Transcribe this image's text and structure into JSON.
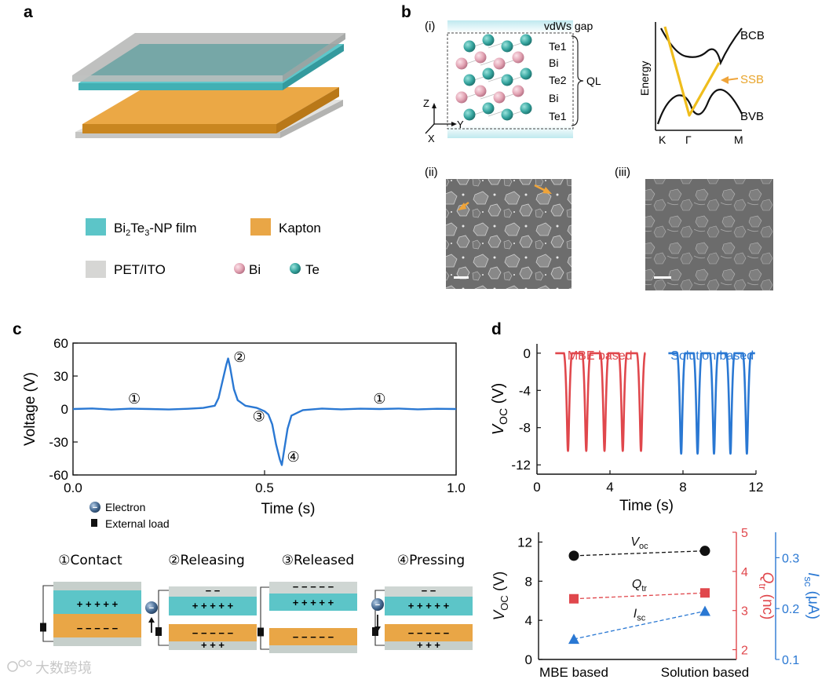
{
  "panels": {
    "a": "a",
    "b": "b",
    "c": "c",
    "d": "d"
  },
  "panel_a": {
    "legend": {
      "bi2te3_main": "Bi",
      "bi2te3_sub1": "2",
      "bi2te3_mid": "Te",
      "bi2te3_sub2": "3",
      "bi2te3_tail": "-NP film",
      "kapton": "Kapton",
      "pet_ito": "PET/ITO",
      "bi": "Bi",
      "te": "Te"
    },
    "colors": {
      "film": "#5cc5c8",
      "kapton": "#e9a646",
      "pet": "#d6d6d4"
    }
  },
  "panel_b": {
    "sub_i": "(i)",
    "sub_ii": "(ii)",
    "sub_iii": "(iii)",
    "vdws_gap": "vdWs gap",
    "layers": [
      "Te1",
      "Bi",
      "Te2",
      "Bi",
      "Te1"
    ],
    "ql": "QL",
    "axes": {
      "z": "Z",
      "y": "Y",
      "x": "X"
    },
    "band": {
      "energy_label": "Energy",
      "bcb": "BCB",
      "bvb": "BVB",
      "ssb": "SSB",
      "k_points": [
        "K",
        "Γ",
        "M"
      ]
    }
  },
  "panel_c": {
    "chart_data": {
      "type": "line",
      "title": "",
      "xlabel": "Time (s)",
      "ylabel": "Voltage (V)",
      "xlim": [
        0.0,
        1.0
      ],
      "ylim": [
        -60,
        60
      ],
      "xticks": [
        0.0,
        0.5,
        1.0
      ],
      "xtick_labels": [
        "0.0",
        "0.5",
        "1.0"
      ],
      "yticks": [
        60,
        30,
        0,
        -30,
        -60
      ],
      "ytick_labels": [
        "60",
        "30",
        "0",
        "-30",
        "-60"
      ],
      "series": [
        {
          "name": "Voltage",
          "x": [
            0.0,
            0.05,
            0.1,
            0.15,
            0.2,
            0.25,
            0.3,
            0.34,
            0.37,
            0.38,
            0.39,
            0.4,
            0.405,
            0.41,
            0.42,
            0.43,
            0.45,
            0.48,
            0.5,
            0.51,
            0.52,
            0.53,
            0.54,
            0.545,
            0.55,
            0.56,
            0.57,
            0.6,
            0.65,
            0.7,
            0.75,
            0.8,
            0.85,
            0.9,
            0.95,
            1.0
          ],
          "y": [
            0,
            0.5,
            -0.5,
            0.3,
            0,
            -0.4,
            0.2,
            1,
            3,
            10,
            25,
            40,
            46,
            38,
            18,
            8,
            3,
            1,
            -2,
            -5,
            -14,
            -32,
            -46,
            -51,
            -40,
            -18,
            -6,
            -1,
            0.4,
            -0.3,
            0.3,
            0,
            0.4,
            -0.3,
            0.2,
            0
          ]
        }
      ],
      "annotations": [
        {
          "text": "①",
          "x": 0.16,
          "y": 5
        },
        {
          "text": "②",
          "x": 0.435,
          "y": 43
        },
        {
          "text": "③",
          "x": 0.485,
          "y": -11
        },
        {
          "text": "④",
          "x": 0.575,
          "y": -48
        },
        {
          "text": "①",
          "x": 0.8,
          "y": 5
        }
      ]
    },
    "legend": {
      "electron": "Electron",
      "external_load": "External load"
    },
    "stages": [
      "①Contact",
      "②Releasing",
      "③Released",
      "④Pressing"
    ],
    "plus_row": "+ + + + +",
    "minus_row": "− − − − −",
    "plus_short": "+ + +",
    "minus_short": "− −",
    "electron_symbol": "−"
  },
  "panel_d": {
    "chart_data": [
      {
        "type": "line",
        "title": "",
        "xlabel": "Time (s)",
        "ylabel_main": "V",
        "ylabel_sub": "OC",
        "ylabel_unit": " (V)",
        "xlim": [
          0,
          12
        ],
        "ylim": [
          -13,
          1
        ],
        "xticks": [
          0,
          4,
          8,
          12
        ],
        "xtick_labels": [
          "0",
          "4",
          "8",
          "12"
        ],
        "yticks": [
          0,
          -4,
          -8,
          -12
        ],
        "ytick_labels": [
          "0",
          "-4",
          "-8",
          "-12"
        ],
        "series": [
          {
            "name": "MBE based",
            "color": "#e0474c",
            "pulse_times": [
              1.7,
              2.7,
              3.7,
              4.7,
              5.7
            ],
            "pulse_depth": -10.5,
            "x_range": [
              1.0,
              5.95
            ]
          },
          {
            "name": "Solution based",
            "color": "#2a78d3",
            "pulse_times": [
              7.9,
              8.8,
              9.7,
              10.6,
              11.5
            ],
            "pulse_depth": -10.8,
            "x_range": [
              7.2,
              11.95
            ]
          }
        ],
        "legend": [
          "MBE based",
          "Solution based"
        ]
      },
      {
        "type": "scatter",
        "categories": [
          "MBE based",
          "Solution based"
        ],
        "series": [
          {
            "name": "Voc",
            "label_main": "V",
            "label_sub": "oc",
            "axis": "left",
            "unit": "V",
            "marker": "circle",
            "color": "#111111",
            "values": [
              10.6,
              11.1
            ]
          },
          {
            "name": "Qtr",
            "label_main": "Q",
            "label_sub": "tr",
            "axis": "right1",
            "unit": "nc",
            "marker": "square",
            "color": "#e0474c",
            "values": [
              3.3,
              3.45
            ]
          },
          {
            "name": "Isc",
            "label_main": "I",
            "label_sub": "sc",
            "axis": "right2",
            "unit": "μA",
            "marker": "triangle",
            "color": "#2a78d3",
            "values": [
              0.14,
              0.195
            ]
          }
        ],
        "left_axis": {
          "label_main": "V",
          "label_sub": "OC",
          "unit": " (V)",
          "ylim": [
            0,
            13
          ],
          "ticks": [
            0,
            4,
            8,
            12
          ],
          "tick_labels": [
            "0",
            "4",
            "8",
            "12"
          ],
          "color": "#111111"
        },
        "right1_axis": {
          "label_main": "Q",
          "label_sub": "tr",
          "unit": " (nc)",
          "ylim": [
            1.75,
            5
          ],
          "ticks": [
            2,
            3,
            4,
            5
          ],
          "tick_labels": [
            "2",
            "3",
            "4",
            "5"
          ],
          "color": "#e0474c"
        },
        "right2_axis": {
          "label_main": "I",
          "label_sub": "sc",
          "unit": " (μA)",
          "ylim": [
            0.1,
            0.35
          ],
          "ticks": [
            0.1,
            0.2,
            0.3
          ],
          "tick_labels": [
            "0.1",
            "0.2",
            "0.3"
          ],
          "color": "#2a78d3"
        }
      }
    ]
  },
  "watermark": "大数跨境"
}
